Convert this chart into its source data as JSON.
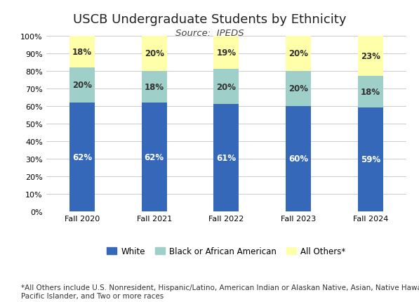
{
  "title": "USCB Undergraduate Students by Ethnicity",
  "subtitle": "Source:  IPEDS",
  "categories": [
    "Fall 2020",
    "Fall 2021",
    "Fall 2022",
    "Fall 2023",
    "Fall 2024"
  ],
  "series": {
    "White": [
      62,
      62,
      61,
      60,
      59
    ],
    "Black or African American": [
      20,
      18,
      20,
      20,
      18
    ],
    "All Others*": [
      18,
      20,
      19,
      20,
      23
    ]
  },
  "colors": {
    "White": "#3568B8",
    "Black or African American": "#9ECFC8",
    "All Others*": "#FFFFAA"
  },
  "ylim": [
    0,
    100
  ],
  "yticks": [
    0,
    10,
    20,
    30,
    40,
    50,
    60,
    70,
    80,
    90,
    100
  ],
  "ytick_labels": [
    "0%",
    "10%",
    "20%",
    "30%",
    "40%",
    "50%",
    "60%",
    "70%",
    "80%",
    "90%",
    "100%"
  ],
  "footnote": "*All Others include U.S. Nonresident, Hispanic/Latino, American Indian or Alaskan Native, Asian, Native Hawaiian or Other\nPacific Islander, and Two or more races",
  "background_color": "#FFFFFF",
  "bar_label_color_white": "#FFFFFF",
  "bar_label_color_others": "#333333",
  "title_fontsize": 13,
  "subtitle_fontsize": 9.5,
  "label_fontsize": 8.5,
  "tick_fontsize": 8,
  "legend_fontsize": 8.5,
  "footnote_fontsize": 7.5,
  "bar_width": 0.35
}
